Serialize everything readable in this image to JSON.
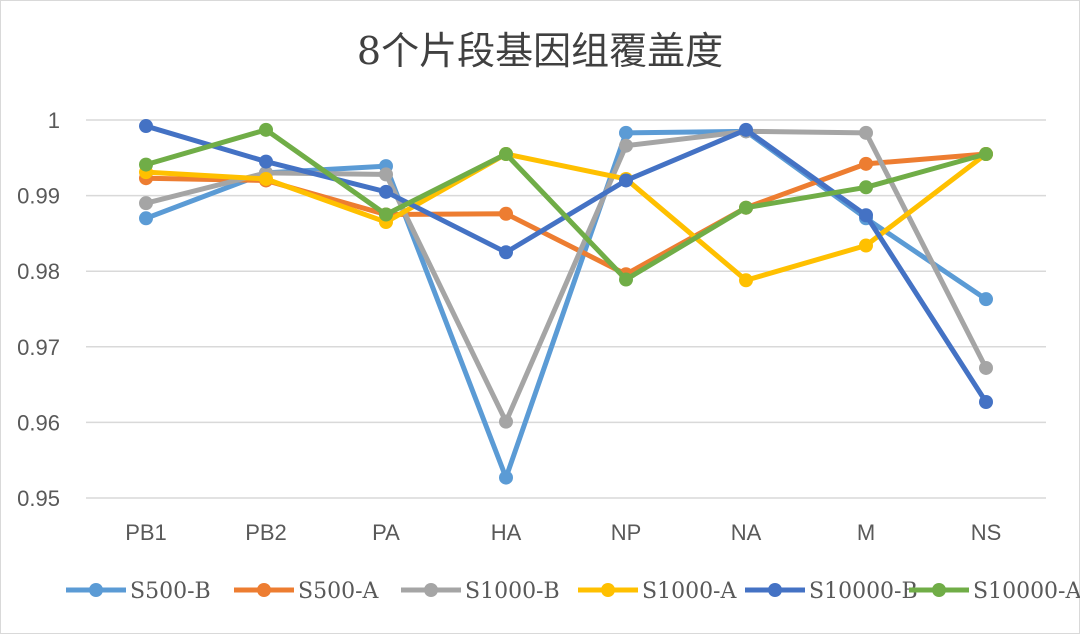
{
  "chart_data": {
    "type": "line",
    "title": "8个片段基因组覆盖度",
    "xlabel": "",
    "ylabel": "",
    "categories": [
      "PB1",
      "PB2",
      "PA",
      "HA",
      "NP",
      "NA",
      "M",
      "NS"
    ],
    "ylim": [
      0.95,
      1.0
    ],
    "yticks": [
      0.95,
      0.96,
      0.97,
      0.98,
      0.99,
      1
    ],
    "ytick_labels": [
      "0.95",
      "0.96",
      "0.97",
      "0.98",
      "0.99",
      "1"
    ],
    "grid": "horizontal",
    "legend_position": "bottom",
    "series": [
      {
        "name": "S500-B",
        "color": "#5B9BD5",
        "values": [
          0.987,
          0.993,
          0.9939,
          0.9527,
          0.9983,
          0.9985,
          0.987,
          0.9763
        ]
      },
      {
        "name": "S500-A",
        "color": "#ED7D31",
        "values": [
          0.9923,
          0.992,
          0.9875,
          0.9876,
          0.9796,
          0.9884,
          0.9942,
          0.9955
        ]
      },
      {
        "name": "S1000-B",
        "color": "#A5A5A5",
        "values": [
          0.989,
          0.993,
          0.9928,
          0.9601,
          0.9966,
          0.9985,
          0.9983,
          0.9672
        ]
      },
      {
        "name": "S1000-A",
        "color": "#FFC000",
        "values": [
          0.9931,
          0.9922,
          0.9865,
          0.9955,
          0.9922,
          0.9788,
          0.9834,
          0.9955
        ]
      },
      {
        "name": "S10000-B",
        "color": "#4472C4",
        "values": [
          0.9992,
          0.9945,
          0.9905,
          0.9825,
          0.992,
          0.9987,
          0.9874,
          0.9627
        ]
      },
      {
        "name": "S10000-A",
        "color": "#70AD47",
        "values": [
          0.9941,
          0.9987,
          0.9875,
          0.9955,
          0.9789,
          0.9884,
          0.9911,
          0.9955
        ]
      }
    ]
  }
}
